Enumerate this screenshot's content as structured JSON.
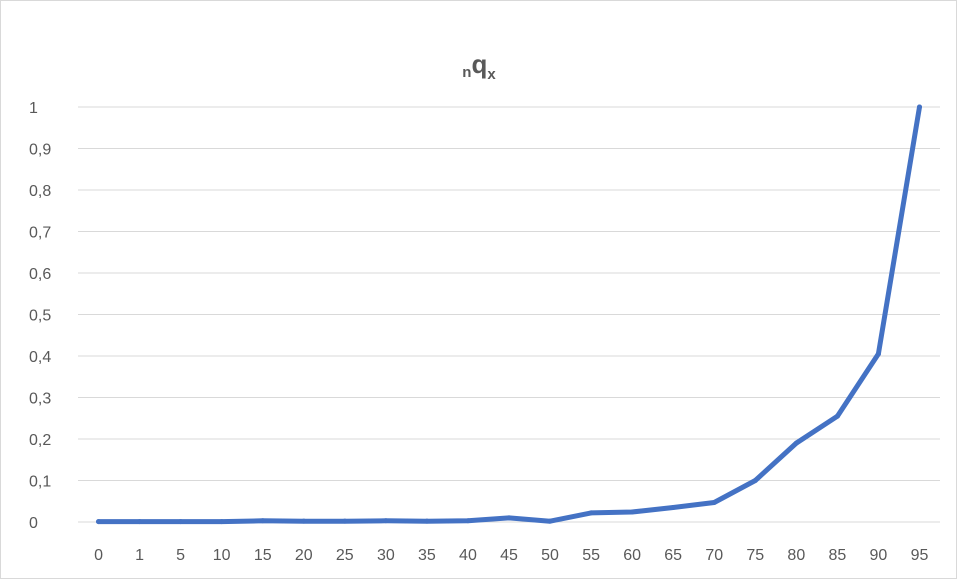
{
  "chart_data": {
    "type": "line",
    "title": {
      "prefix": "n",
      "main": "q",
      "suffix": "x"
    },
    "xlabel": "",
    "ylabel": "",
    "categories": [
      "0",
      "1",
      "5",
      "10",
      "15",
      "20",
      "25",
      "30",
      "35",
      "40",
      "45",
      "50",
      "55",
      "60",
      "65",
      "70",
      "75",
      "80",
      "85",
      "90",
      "95"
    ],
    "series": [
      {
        "values": [
          0.001,
          0.001,
          0.001,
          0.001,
          0.003,
          0.002,
          0.002,
          0.003,
          0.002,
          0.003,
          0.01,
          0.002,
          0.022,
          0.024,
          0.035,
          0.047,
          0.1,
          0.19,
          0.255,
          0.405,
          1.0
        ],
        "color": "#4472c4"
      }
    ],
    "yticks": [
      "0",
      "0,1",
      "0,2",
      "0,3",
      "0,4",
      "0,5",
      "0,6",
      "0,7",
      "0,8",
      "0,9",
      "1"
    ],
    "ylim": [
      0,
      1
    ],
    "grid": true,
    "legend": "none",
    "colors": {
      "line": "#4472c4",
      "grid": "#d9d9d9",
      "text": "#595959",
      "border": "#d9d9d9"
    }
  }
}
